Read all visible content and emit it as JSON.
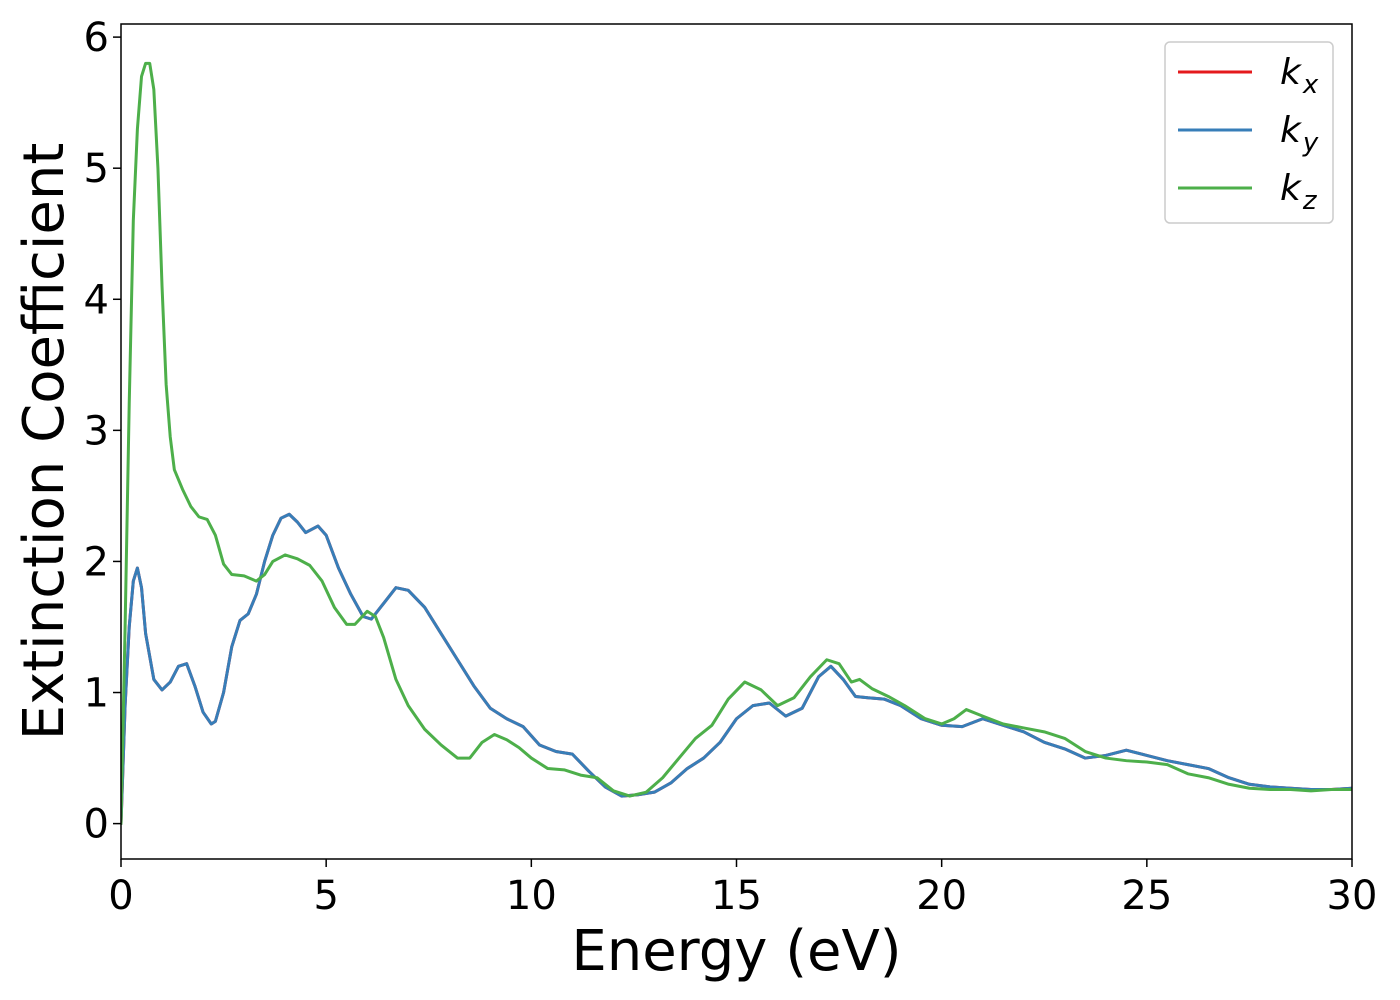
{
  "chart_data": {
    "type": "line",
    "xlabel": "Energy (eV)",
    "ylabel": "Extinction Coefficient",
    "xlim": [
      0,
      30
    ],
    "ylim": [
      -0.27,
      6.1
    ],
    "xticks": [
      0,
      5,
      10,
      15,
      20,
      25,
      30
    ],
    "yticks": [
      0,
      1,
      2,
      3,
      4,
      5,
      6
    ],
    "grid": false,
    "legend_position": "top-right",
    "series": [
      {
        "name": "k_x",
        "label_main": "k",
        "label_sub": "x",
        "color": "#e41a1c",
        "x": [
          0,
          0.1,
          0.2,
          0.3,
          0.4,
          0.5,
          0.6,
          0.8,
          1.0,
          1.2,
          1.4,
          1.6,
          1.8,
          2.0,
          2.2,
          2.3,
          2.5,
          2.7,
          2.9,
          3.1,
          3.3,
          3.5,
          3.7,
          3.9,
          4.1,
          4.3,
          4.5,
          4.8,
          5.0,
          5.3,
          5.6,
          5.9,
          6.1,
          6.4,
          6.7,
          7.0,
          7.4,
          7.8,
          8.2,
          8.6,
          9.0,
          9.4,
          9.8,
          10.2,
          10.6,
          11.0,
          11.4,
          11.8,
          12.2,
          12.6,
          13.0,
          13.4,
          13.8,
          14.2,
          14.6,
          15.0,
          15.4,
          15.8,
          16.2,
          16.6,
          17.0,
          17.3,
          17.6,
          17.9,
          18.2,
          18.6,
          19.0,
          19.5,
          20.0,
          20.5,
          21.0,
          21.5,
          22.0,
          22.5,
          23.0,
          23.5,
          24.0,
          24.5,
          25.0,
          25.5,
          26.0,
          26.5,
          27.0,
          27.5,
          28.0,
          28.5,
          29.0,
          29.5,
          30.0
        ],
        "y": [
          0,
          0.9,
          1.5,
          1.85,
          1.95,
          1.8,
          1.45,
          1.1,
          1.02,
          1.08,
          1.2,
          1.22,
          1.05,
          0.85,
          0.76,
          0.78,
          1.0,
          1.35,
          1.55,
          1.6,
          1.75,
          2.0,
          2.2,
          2.33,
          2.36,
          2.3,
          2.22,
          2.27,
          2.2,
          1.95,
          1.75,
          1.58,
          1.56,
          1.68,
          1.8,
          1.78,
          1.65,
          1.45,
          1.25,
          1.05,
          0.88,
          0.8,
          0.74,
          0.6,
          0.55,
          0.53,
          0.4,
          0.28,
          0.21,
          0.22,
          0.24,
          0.31,
          0.42,
          0.5,
          0.62,
          0.8,
          0.9,
          0.92,
          0.82,
          0.88,
          1.12,
          1.2,
          1.1,
          0.97,
          0.96,
          0.95,
          0.9,
          0.8,
          0.75,
          0.74,
          0.8,
          0.75,
          0.7,
          0.62,
          0.57,
          0.5,
          0.52,
          0.56,
          0.52,
          0.48,
          0.45,
          0.42,
          0.35,
          0.3,
          0.28,
          0.27,
          0.26,
          0.26,
          0.27
        ]
      },
      {
        "name": "k_y",
        "label_main": "k",
        "label_sub": "y",
        "color": "#377eb8",
        "x": [
          0,
          0.1,
          0.2,
          0.3,
          0.4,
          0.5,
          0.6,
          0.8,
          1.0,
          1.2,
          1.4,
          1.6,
          1.8,
          2.0,
          2.2,
          2.3,
          2.5,
          2.7,
          2.9,
          3.1,
          3.3,
          3.5,
          3.7,
          3.9,
          4.1,
          4.3,
          4.5,
          4.8,
          5.0,
          5.3,
          5.6,
          5.9,
          6.1,
          6.4,
          6.7,
          7.0,
          7.4,
          7.8,
          8.2,
          8.6,
          9.0,
          9.4,
          9.8,
          10.2,
          10.6,
          11.0,
          11.4,
          11.8,
          12.2,
          12.6,
          13.0,
          13.4,
          13.8,
          14.2,
          14.6,
          15.0,
          15.4,
          15.8,
          16.2,
          16.6,
          17.0,
          17.3,
          17.6,
          17.9,
          18.2,
          18.6,
          19.0,
          19.5,
          20.0,
          20.5,
          21.0,
          21.5,
          22.0,
          22.5,
          23.0,
          23.5,
          24.0,
          24.5,
          25.0,
          25.5,
          26.0,
          26.5,
          27.0,
          27.5,
          28.0,
          28.5,
          29.0,
          29.5,
          30.0
        ],
        "y": [
          0,
          0.9,
          1.5,
          1.85,
          1.95,
          1.8,
          1.45,
          1.1,
          1.02,
          1.08,
          1.2,
          1.22,
          1.05,
          0.85,
          0.76,
          0.78,
          1.0,
          1.35,
          1.55,
          1.6,
          1.75,
          2.0,
          2.2,
          2.33,
          2.36,
          2.3,
          2.22,
          2.27,
          2.2,
          1.95,
          1.75,
          1.58,
          1.56,
          1.68,
          1.8,
          1.78,
          1.65,
          1.45,
          1.25,
          1.05,
          0.88,
          0.8,
          0.74,
          0.6,
          0.55,
          0.53,
          0.4,
          0.28,
          0.21,
          0.22,
          0.24,
          0.31,
          0.42,
          0.5,
          0.62,
          0.8,
          0.9,
          0.92,
          0.82,
          0.88,
          1.12,
          1.2,
          1.1,
          0.97,
          0.96,
          0.95,
          0.9,
          0.8,
          0.75,
          0.74,
          0.8,
          0.75,
          0.7,
          0.62,
          0.57,
          0.5,
          0.52,
          0.56,
          0.52,
          0.48,
          0.45,
          0.42,
          0.35,
          0.3,
          0.28,
          0.27,
          0.26,
          0.26,
          0.27
        ]
      },
      {
        "name": "k_z",
        "label_main": "k",
        "label_sub": "z",
        "color": "#4daf4a",
        "x": [
          0,
          0.1,
          0.2,
          0.3,
          0.4,
          0.5,
          0.6,
          0.7,
          0.8,
          0.9,
          1.0,
          1.1,
          1.2,
          1.3,
          1.5,
          1.7,
          1.9,
          2.1,
          2.3,
          2.5,
          2.7,
          3.0,
          3.3,
          3.5,
          3.7,
          4.0,
          4.3,
          4.6,
          4.9,
          5.2,
          5.5,
          5.7,
          6.0,
          6.2,
          6.4,
          6.7,
          7.0,
          7.4,
          7.8,
          8.2,
          8.5,
          8.8,
          9.1,
          9.4,
          9.7,
          10.0,
          10.4,
          10.8,
          11.2,
          11.6,
          12.0,
          12.4,
          12.8,
          13.2,
          13.6,
          14.0,
          14.4,
          14.8,
          15.2,
          15.6,
          16.0,
          16.4,
          16.8,
          17.2,
          17.5,
          17.8,
          18.0,
          18.3,
          18.7,
          19.1,
          19.6,
          20.0,
          20.3,
          20.6,
          21.0,
          21.5,
          22.0,
          22.5,
          23.0,
          23.5,
          24.0,
          24.5,
          25.0,
          25.5,
          26.0,
          26.5,
          27.0,
          27.5,
          28.0,
          28.5,
          29.0,
          29.5,
          30.0
        ],
        "y": [
          0,
          1.5,
          3.2,
          4.6,
          5.3,
          5.7,
          5.8,
          5.8,
          5.6,
          5.0,
          4.1,
          3.35,
          2.95,
          2.7,
          2.55,
          2.42,
          2.34,
          2.32,
          2.2,
          1.98,
          1.9,
          1.89,
          1.85,
          1.9,
          2.0,
          2.05,
          2.02,
          1.97,
          1.85,
          1.65,
          1.52,
          1.52,
          1.62,
          1.58,
          1.42,
          1.1,
          0.9,
          0.72,
          0.6,
          0.5,
          0.5,
          0.62,
          0.68,
          0.64,
          0.58,
          0.5,
          0.42,
          0.41,
          0.37,
          0.35,
          0.25,
          0.21,
          0.24,
          0.35,
          0.5,
          0.65,
          0.75,
          0.95,
          1.08,
          1.02,
          0.9,
          0.96,
          1.12,
          1.25,
          1.22,
          1.08,
          1.1,
          1.03,
          0.97,
          0.9,
          0.8,
          0.76,
          0.8,
          0.87,
          0.82,
          0.76,
          0.73,
          0.7,
          0.65,
          0.55,
          0.5,
          0.48,
          0.47,
          0.45,
          0.38,
          0.35,
          0.3,
          0.27,
          0.26,
          0.26,
          0.25,
          0.26,
          0.26
        ]
      }
    ]
  }
}
